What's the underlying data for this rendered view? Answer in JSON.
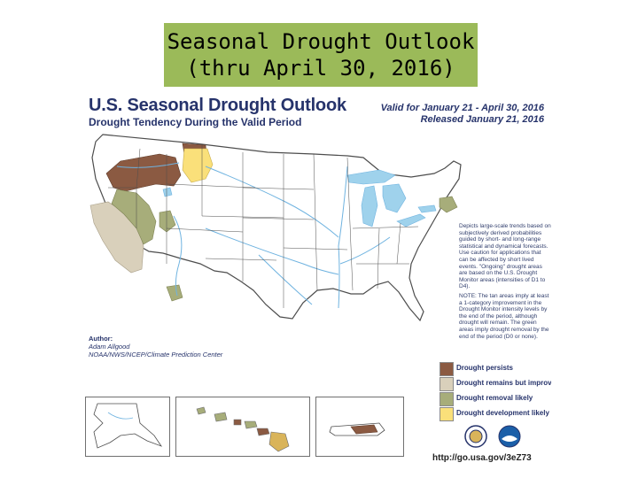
{
  "slide": {
    "title_line1": "Seasonal Drought Outlook",
    "title_line2": "(thru April 30, 2016)"
  },
  "map": {
    "title": "U.S. Seasonal Drought Outlook",
    "subtitle": "Drought Tendency During the Valid Period",
    "valid": "Valid for January 21 - April 30, 2016",
    "released": "Released January 21, 2016",
    "notes": {
      "p1": "Depicts large-scale trends based on subjectively derived probabilities guided by short- and long-range statistical and dynamical forecasts. Use caution for applications that can be affected by short lived events. \"Ongoing\" drought areas are based on the U.S. Drought Monitor areas (intensities of D1 to D4).",
      "p2": "NOTE: The tan areas imply at least a 1-category improvement in the Drought Monitor intensity levels by the end of the period, although drought will remain. The green areas imply drought removal by the end of the period (D0 or none)."
    },
    "author": {
      "label": "Author:",
      "name": "Adam Allgood",
      "org": "NOAA/NWS/NCEP/Climate Prediction Center"
    },
    "legend": [
      {
        "label": "Drought persists",
        "color": "#8b5a42"
      },
      {
        "label": "Drought remains but improves",
        "color": "#d9d0bb"
      },
      {
        "label": "Drought removal likely",
        "color": "#a7ad7a"
      },
      {
        "label": "Drought development likely",
        "color": "#fae07a"
      }
    ],
    "url": "http://go.usa.gov/3eZ73",
    "colors": {
      "land": "#ffffff",
      "lakes": "#9fd2ec",
      "rivers": "#6fb3e0",
      "borders": "#4d4d4d"
    }
  }
}
